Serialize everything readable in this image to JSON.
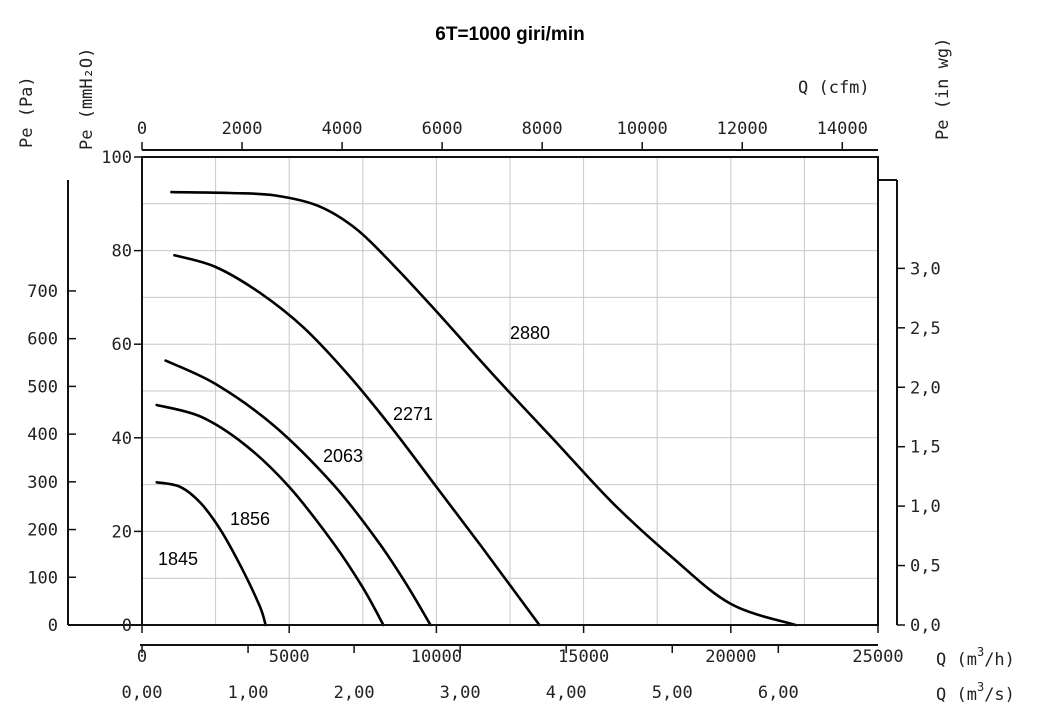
{
  "chart_data": {
    "type": "line",
    "title": "6T=1000 giri/min",
    "axes": {
      "x_bottom_main": {
        "label": "Q (m³/h)",
        "label_base": "Q (m",
        "label_exp": "3",
        "label_tail": "/h)",
        "range": [
          0,
          25000
        ],
        "ticks": [
          0,
          5000,
          10000,
          15000,
          20000,
          25000
        ],
        "tick_labels": [
          "0",
          "5000",
          "10000",
          "15000",
          "20000",
          "25000"
        ]
      },
      "x_bottom_secondary": {
        "label": "Q (m³/s)",
        "label_base": "Q (m",
        "label_exp": "3",
        "label_tail": "/s)",
        "range": [
          0,
          6.94
        ],
        "ticks": [
          0,
          1,
          2,
          3,
          4,
          5,
          6
        ],
        "tick_labels": [
          "0,00",
          "1,00",
          "2,00",
          "3,00",
          "4,00",
          "5,00",
          "6,00"
        ]
      },
      "x_top": {
        "label": "Q (cfm)",
        "range": [
          0,
          14714
        ],
        "ticks": [
          0,
          2000,
          4000,
          6000,
          8000,
          10000,
          12000,
          14000
        ],
        "tick_labels": [
          "0",
          "2000",
          "4000",
          "6000",
          "8000",
          "10000",
          "12000",
          "14000"
        ]
      },
      "y_left_pa": {
        "label": "Pe (Pa)",
        "range": [
          0,
          980.7
        ],
        "ticks": [
          0,
          100,
          200,
          300,
          400,
          500,
          600,
          700
        ],
        "tick_labels": [
          "0",
          "100",
          "200",
          "300",
          "400",
          "500",
          "600",
          "700"
        ]
      },
      "y_left_mmh2o": {
        "label": "Pe (mmH₂O)",
        "range": [
          0,
          100
        ],
        "ticks": [
          0,
          20,
          40,
          60,
          80,
          100
        ],
        "tick_labels": [
          "0",
          "20",
          "40",
          "60",
          "80",
          "100"
        ]
      },
      "y_right": {
        "label": "Pe (in wg)",
        "range": [
          0,
          3.937
        ],
        "ticks": [
          0,
          0.5,
          1.0,
          1.5,
          2.0,
          2.5,
          3.0
        ],
        "tick_labels": [
          "0,0",
          "0,5",
          "1,0",
          "1,5",
          "2,0",
          "2,5",
          "3,0"
        ]
      }
    },
    "grid": true,
    "series": [
      {
        "name": "1845",
        "x": [
          500,
          1300,
          2000,
          2700,
          3400,
          4000,
          4200
        ],
        "y": [
          30.5,
          29.5,
          26,
          20,
          12,
          4,
          0
        ]
      },
      {
        "name": "1856",
        "x": [
          500,
          2000,
          3500,
          5000,
          6500,
          7500,
          8200
        ],
        "y": [
          47,
          44.5,
          38.5,
          29.5,
          17.5,
          8,
          0
        ]
      },
      {
        "name": "2063",
        "x": [
          800,
          2500,
          4500,
          6500,
          8000,
          9000,
          9800
        ],
        "y": [
          56.5,
          51.5,
          42.5,
          30,
          18,
          8.5,
          0
        ]
      },
      {
        "name": "2271",
        "x": [
          1100,
          2500,
          4000,
          5500,
          7000,
          8500,
          10000,
          11500,
          13500
        ],
        "y": [
          79,
          76.5,
          71,
          63.5,
          53.5,
          42,
          29.5,
          17,
          0
        ]
      },
      {
        "name": "2880",
        "x": [
          1000,
          3000,
          4500,
          6000,
          7300,
          8600,
          10000,
          12000,
          14000,
          16000,
          18000,
          20000,
          22200
        ],
        "y": [
          92.5,
          92.3,
          91.8,
          89.5,
          84.5,
          76.5,
          67,
          53,
          39.5,
          26,
          14.5,
          4.5,
          0
        ]
      }
    ],
    "curve_labels": [
      "1845",
      "1856",
      "2063",
      "2271",
      "2880"
    ]
  }
}
